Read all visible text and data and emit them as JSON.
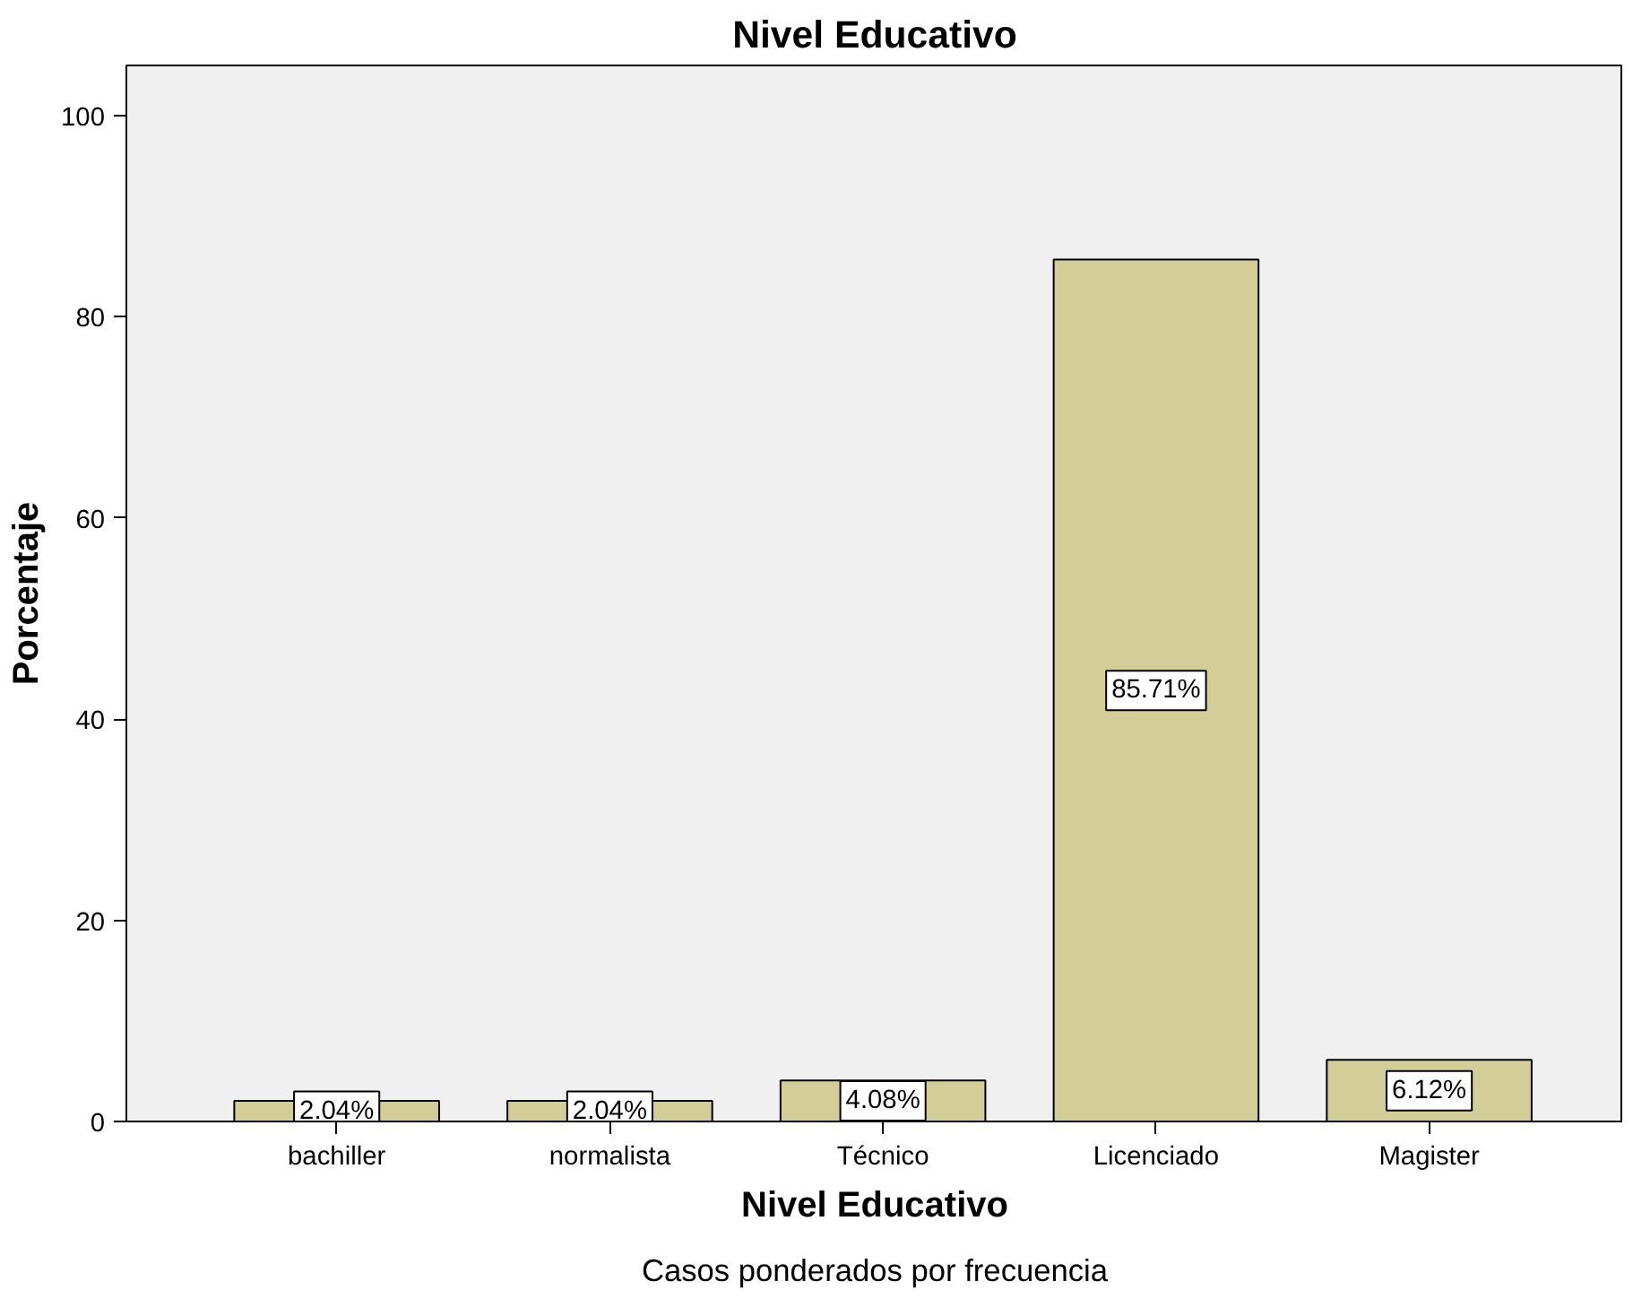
{
  "chart_data": {
    "type": "bar",
    "title": "Nivel Educativo",
    "xlabel": "Nivel Educativo",
    "ylabel": "Porcentaje",
    "categories": [
      "bachiller",
      "normalista",
      "Técnico",
      "Licenciado",
      "Magister"
    ],
    "values": [
      2.04,
      2.04,
      4.08,
      85.71,
      6.12
    ],
    "value_labels": [
      "2.04%",
      "2.04%",
      "4.08%",
      "85.71%",
      "6.12%"
    ],
    "color": "#d3ce97",
    "ylim": [
      0,
      105
    ],
    "yticks": [
      0,
      20,
      40,
      60,
      80,
      100
    ],
    "grid": false,
    "annotations": [
      "Casos ponderados por frecuencia"
    ]
  }
}
